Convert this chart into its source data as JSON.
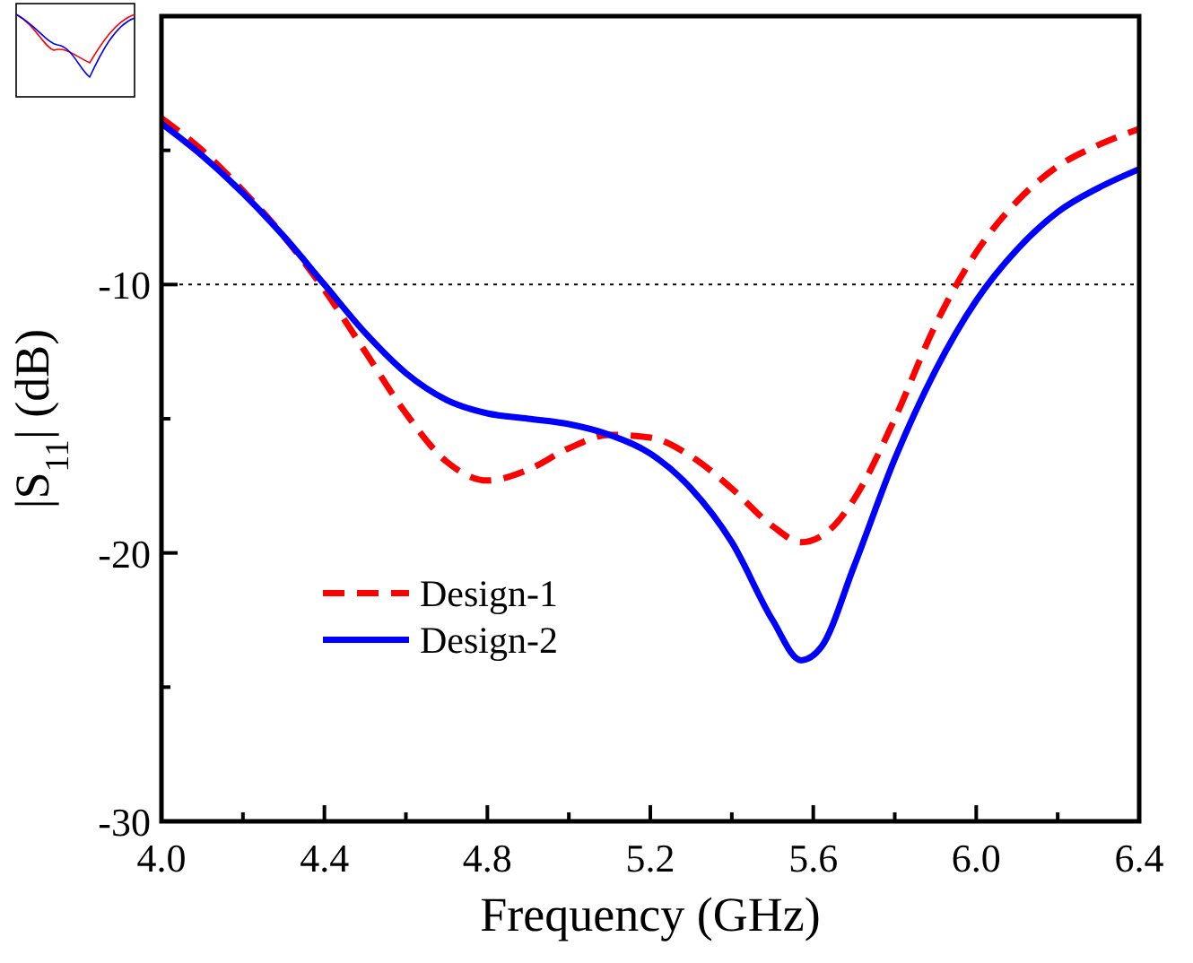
{
  "chart_data": {
    "type": "line",
    "xlabel": "Frequency (GHz)",
    "ylabel": "|S$_{11}$| (dB)",
    "xlim": [
      4.0,
      6.4
    ],
    "xticks": [
      {
        "value": 4.0,
        "label": "4.0"
      },
      {
        "value": 4.2,
        "label": null
      },
      {
        "value": 4.4,
        "label": "4.4"
      },
      {
        "value": 4.6,
        "label": null
      },
      {
        "value": 4.8,
        "label": "4.8"
      },
      {
        "value": 5.0,
        "label": null
      },
      {
        "value": 5.2,
        "label": "5.2"
      },
      {
        "value": 5.4,
        "label": null
      },
      {
        "value": 5.6,
        "label": "5.6"
      },
      {
        "value": 5.8,
        "label": null
      },
      {
        "value": 6.0,
        "label": "6.0"
      },
      {
        "value": 6.2,
        "label": null
      },
      {
        "value": 6.4,
        "label": "6.4"
      }
    ],
    "ylim": [
      -30,
      0
    ],
    "yticks": [
      -30,
      {
        "value": -25,
        "label": null
      },
      -20,
      {
        "value": -15,
        "label": null
      },
      -10,
      {
        "value": -5,
        "label": null
      }
    ],
    "ref_lines": [
      {
        "axis": "y",
        "value": -10,
        "color": "#000000",
        "line_style": "dotted"
      }
    ],
    "legend": "bottom left",
    "grid": false,
    "series": [
      {
        "name": "Design-1",
        "color": "#ff0000",
        "line_style": "dashed",
        "x": [
          4.0,
          4.1,
          4.2,
          4.3,
          4.4,
          4.5,
          4.6,
          4.7,
          4.8,
          4.9,
          5.0,
          5.1,
          5.2,
          5.3,
          5.4,
          5.5,
          5.57,
          5.65,
          5.7,
          5.8,
          5.9,
          6.0,
          6.1,
          6.2,
          6.3,
          6.4
        ],
        "values": [
          -3.8,
          -5.0,
          -6.5,
          -8.2,
          -10.2,
          -12.5,
          -14.8,
          -16.6,
          -17.3,
          -16.9,
          -16.1,
          -15.6,
          -15.7,
          -16.4,
          -17.6,
          -19.0,
          -19.6,
          -19.0,
          -18.0,
          -15.0,
          -11.5,
          -8.8,
          -6.9,
          -5.6,
          -4.8,
          -4.2
        ]
      },
      {
        "name": "Design-2",
        "color": "#0000ff",
        "line_style": "solid",
        "x": [
          4.0,
          4.1,
          4.2,
          4.3,
          4.4,
          4.5,
          4.6,
          4.7,
          4.8,
          4.9,
          5.0,
          5.1,
          5.2,
          5.3,
          5.4,
          5.5,
          5.57,
          5.62,
          5.7,
          5.8,
          5.9,
          6.0,
          6.1,
          6.2,
          6.3,
          6.4
        ],
        "values": [
          -4.0,
          -5.2,
          -6.6,
          -8.2,
          -10.0,
          -11.8,
          -13.3,
          -14.3,
          -14.8,
          -15.0,
          -15.2,
          -15.6,
          -16.3,
          -17.6,
          -19.6,
          -22.5,
          -24.0,
          -23.5,
          -20.5,
          -16.5,
          -13.2,
          -10.6,
          -8.7,
          -7.3,
          -6.4,
          -5.7
        ]
      }
    ]
  }
}
